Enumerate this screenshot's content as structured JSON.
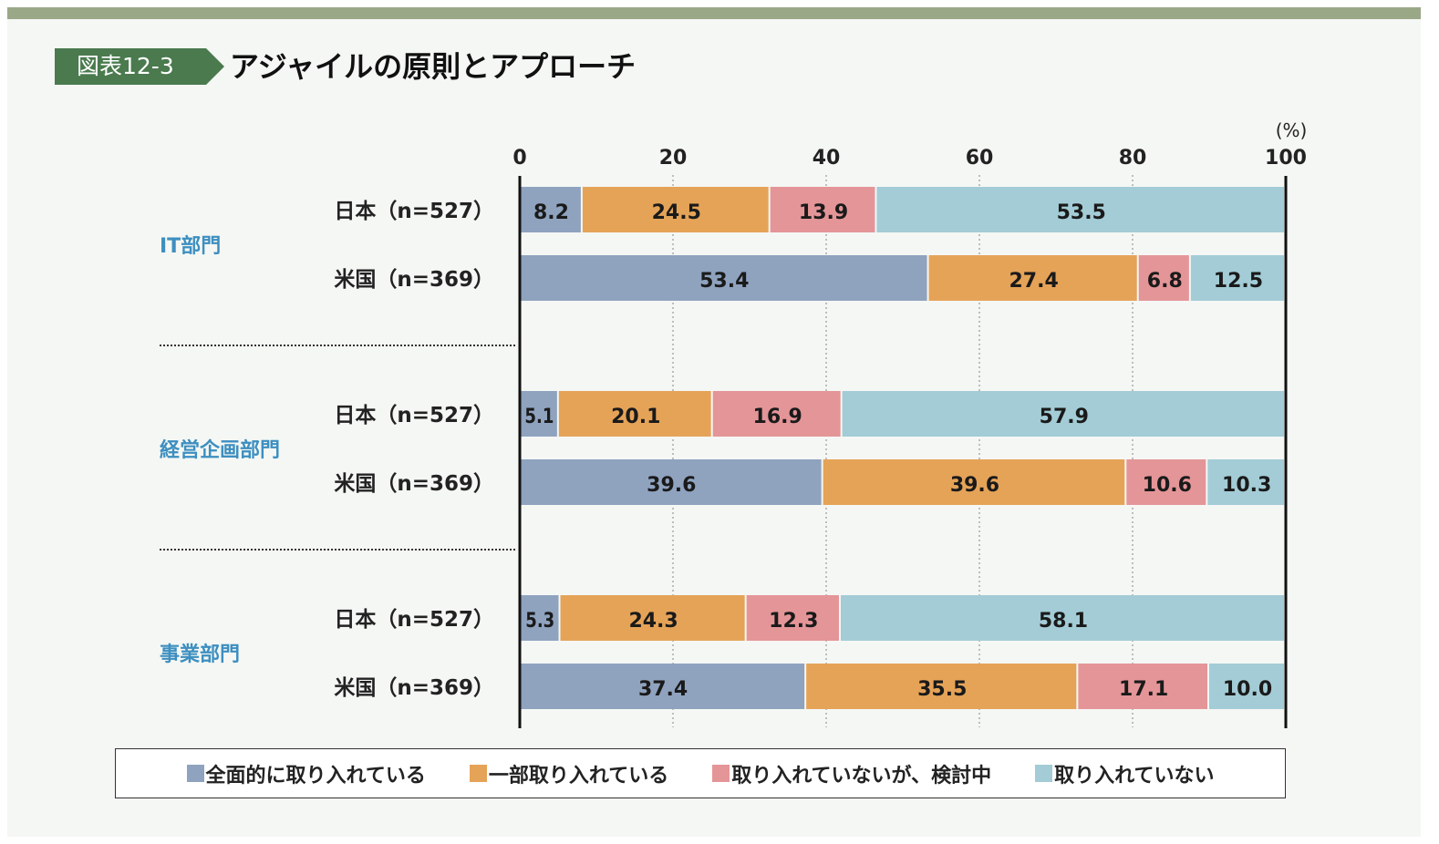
{
  "figure_number": "図表12-3",
  "chart_data": {
    "type": "bar",
    "orientation": "horizontal",
    "stacked": true,
    "title": "アジャイルの原則とアプローチ",
    "unit_label": "(%)",
    "xlim": [
      0,
      100
    ],
    "xticks": [
      0,
      20,
      40,
      60,
      80,
      100
    ],
    "grid": "dotted vertical",
    "legend_position": "bottom",
    "groups": [
      {
        "label": "IT部門",
        "rows": [
          {
            "label": "日本（n=527）",
            "values": [
              8.2,
              24.5,
              13.9,
              53.5
            ]
          },
          {
            "label": "米国（n=369）",
            "values": [
              53.4,
              27.4,
              6.8,
              12.5
            ]
          }
        ]
      },
      {
        "label": "経営企画部門",
        "rows": [
          {
            "label": "日本（n=527）",
            "values": [
              5.1,
              20.1,
              16.9,
              57.9
            ]
          },
          {
            "label": "米国（n=369）",
            "values": [
              39.6,
              39.6,
              10.6,
              10.3
            ]
          }
        ]
      },
      {
        "label": "事業部門",
        "rows": [
          {
            "label": "日本（n=527）",
            "values": [
              5.3,
              24.3,
              12.3,
              58.1
            ]
          },
          {
            "label": "米国（n=369）",
            "values": [
              37.4,
              35.5,
              17.1,
              10.0
            ]
          }
        ]
      }
    ],
    "series": [
      {
        "name": "全面的に取り入れている",
        "color": "#8fa3bf"
      },
      {
        "name": "一部取り入れている",
        "color": "#e5a358"
      },
      {
        "name": "取り入れていないが、検討中",
        "color": "#e49598"
      },
      {
        "name": "取り入れていない",
        "color": "#a3ccd6"
      }
    ]
  },
  "colors": {
    "band": "#9aa888",
    "tag": "#4a7a4e",
    "group_label": "#3d8fc0"
  }
}
